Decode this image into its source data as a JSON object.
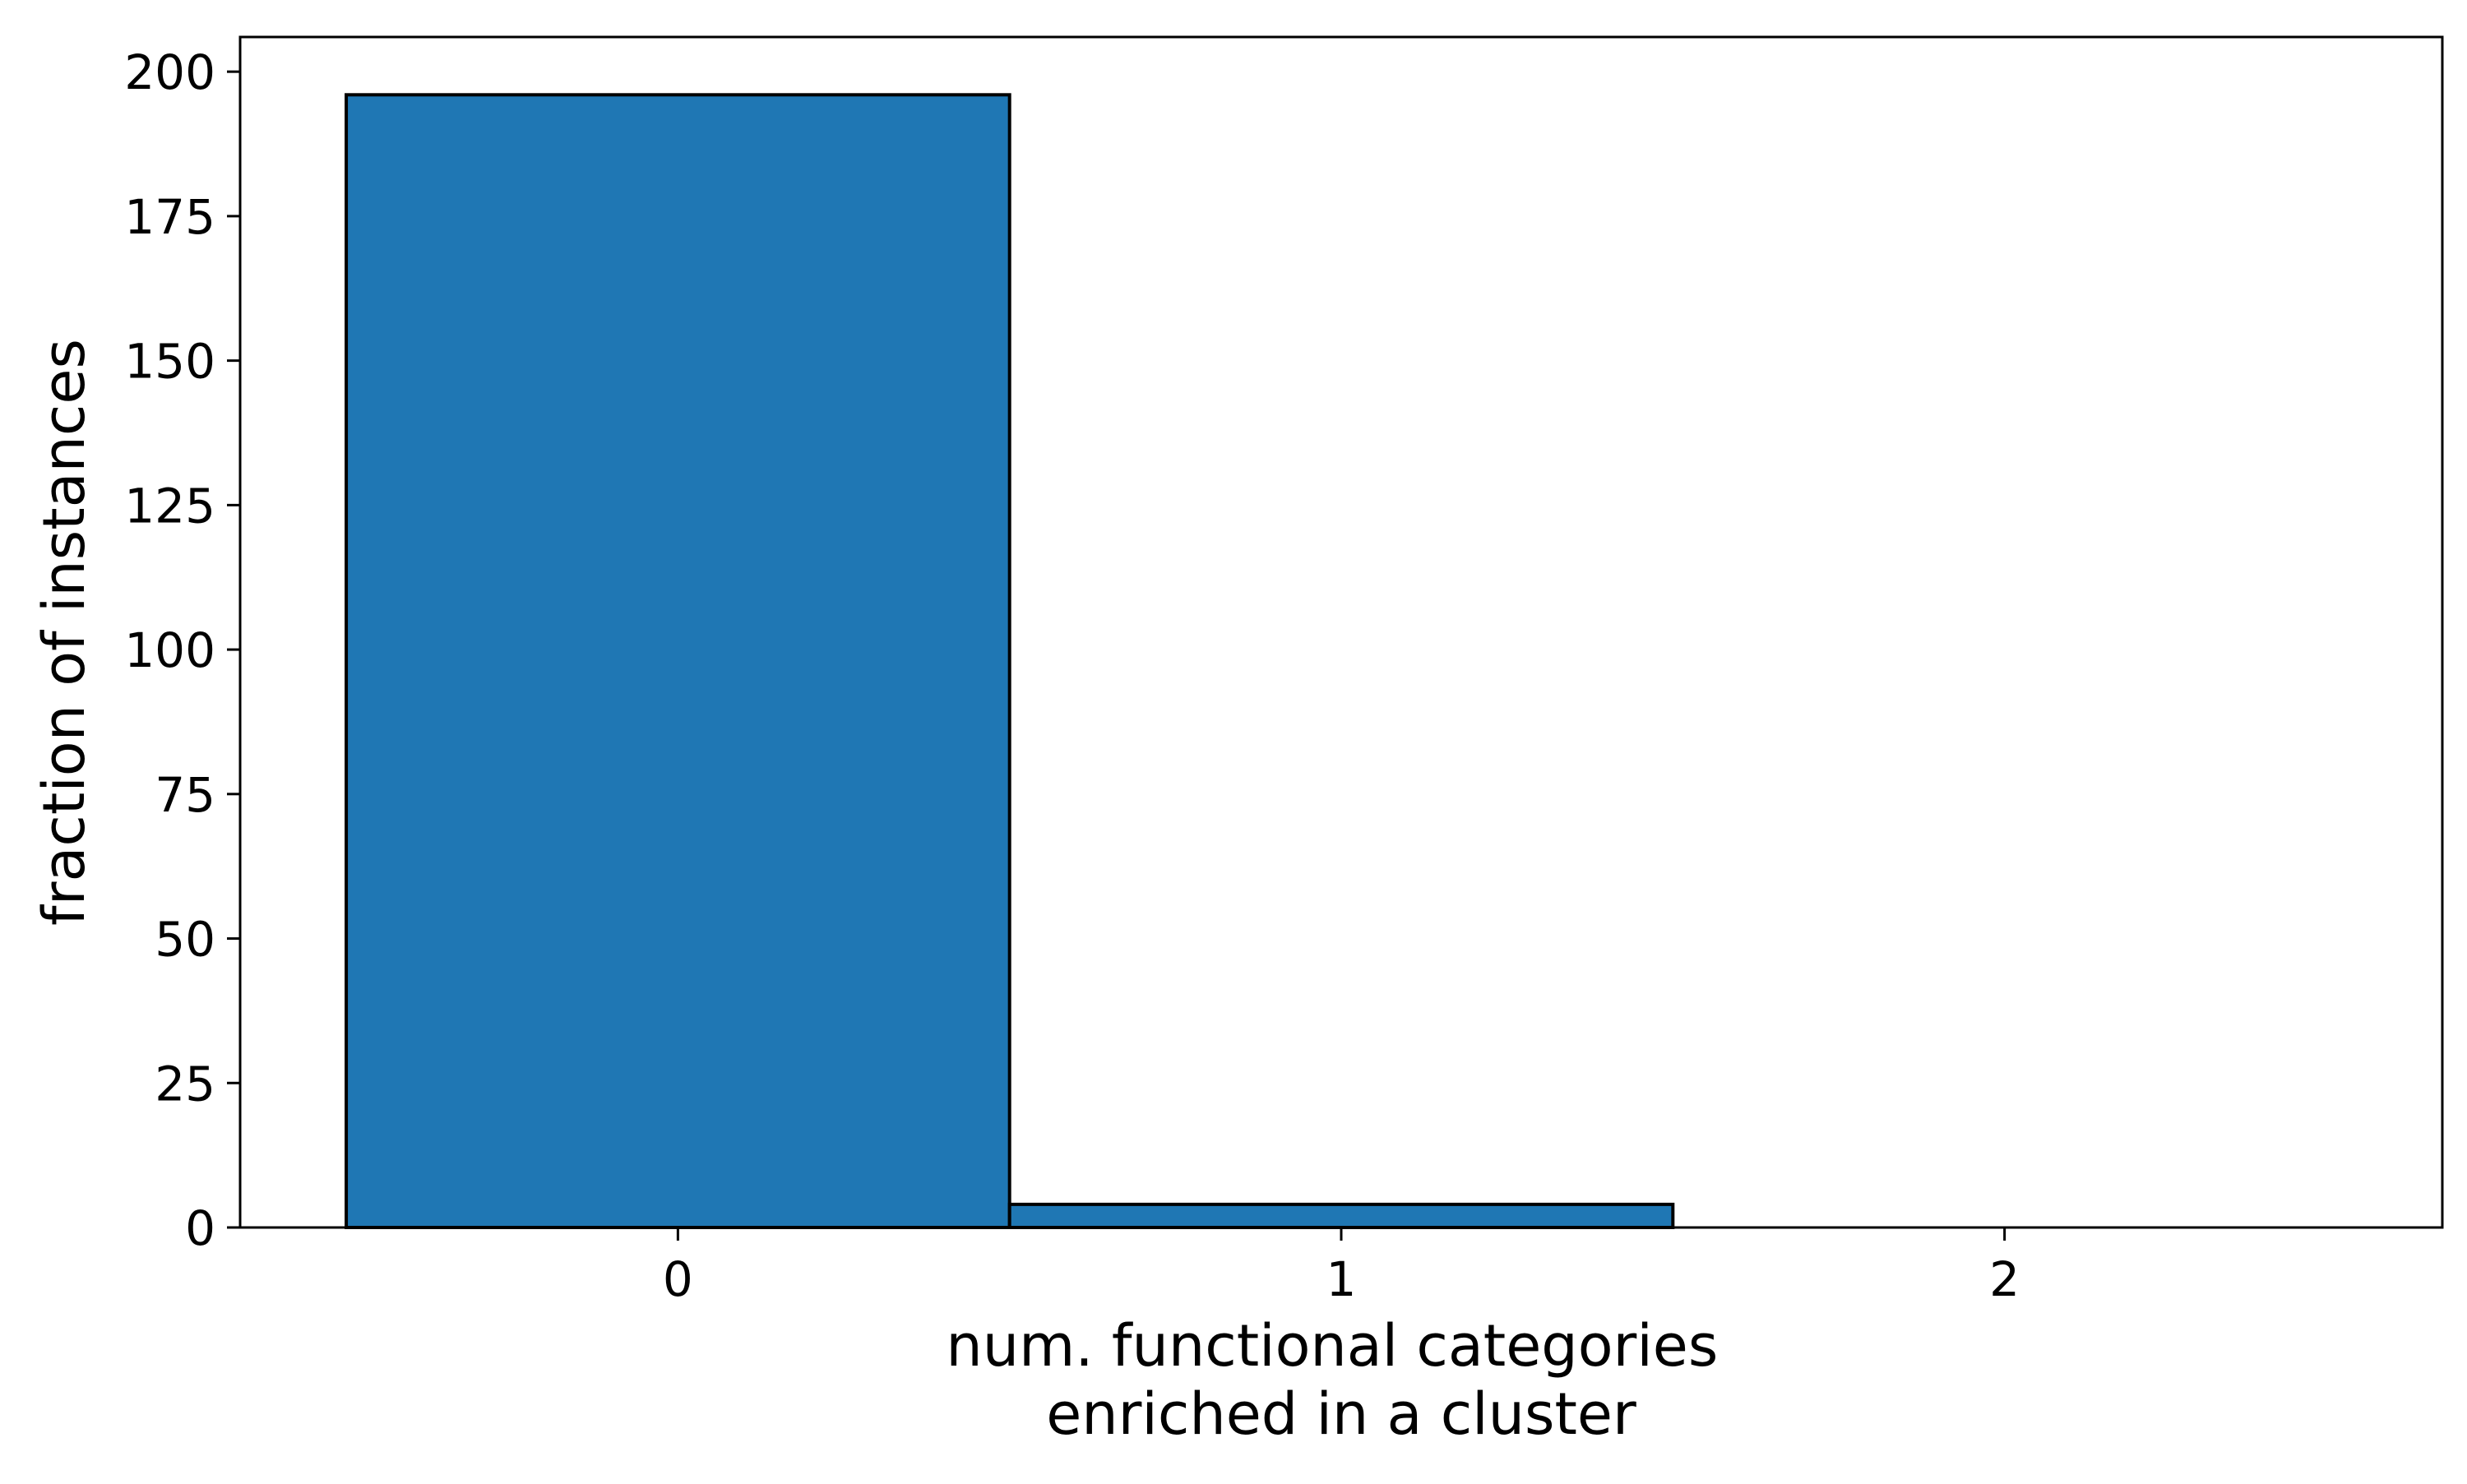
{
  "chart_data": {
    "type": "bar",
    "title": "",
    "categories": [
      "0",
      "1",
      "2"
    ],
    "values": [
      196,
      4,
      0
    ],
    "x_ticks": [
      0,
      1,
      2
    ],
    "y_ticks": [
      0,
      25,
      50,
      75,
      100,
      125,
      150,
      175,
      200
    ],
    "xlabel_lines": [
      "num. functional categories",
      "enriched in a cluster"
    ],
    "ylabel": "fraction of instances",
    "xlim": [
      -0.66,
      2.66
    ],
    "ylim": [
      0,
      206
    ],
    "bar_width": 1.0,
    "grid": false,
    "legend": "none",
    "colors": {
      "bar_fill": "#1f77b4",
      "bar_edge": "#000000",
      "axes": "#000000",
      "background": "#ffffff"
    }
  }
}
